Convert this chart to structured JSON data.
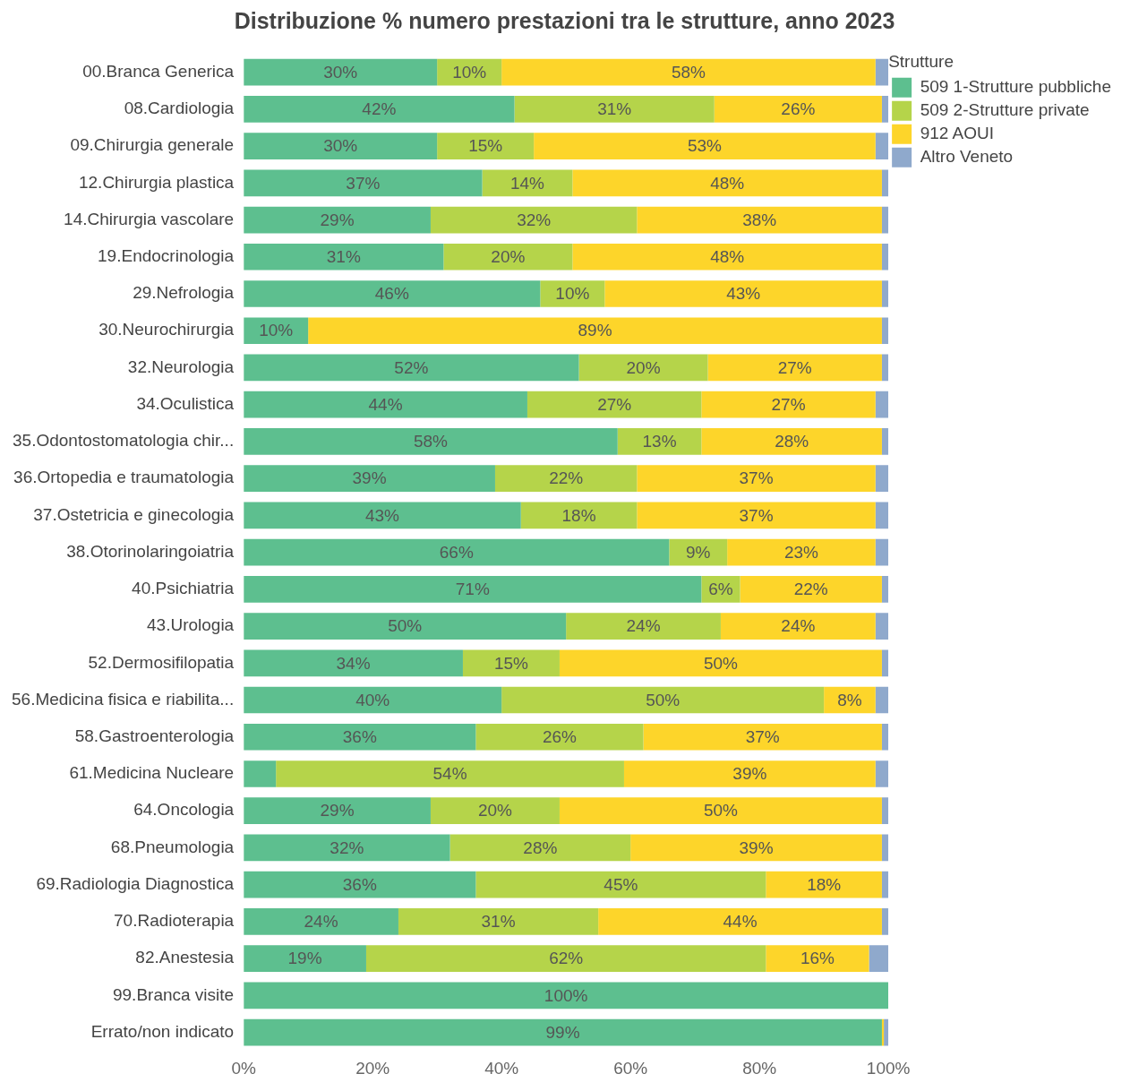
{
  "chart_data": {
    "type": "bar",
    "orientation": "horizontal",
    "stacked": true,
    "title": "Distribuzione % numero prestazioni tra le strutture, anno 2023",
    "legend_title": "Strutture",
    "legend": "top right",
    "grid": false,
    "categories": [
      "00.Branca Generica",
      "08.Cardiologia",
      "09.Chirurgia generale",
      "12.Chirurgia plastica",
      "14.Chirurgia vascolare",
      "19.Endocrinologia",
      "29.Nefrologia",
      "30.Neurochirurgia",
      "32.Neurologia",
      "34.Oculistica",
      "35.Odontostomatologia chir...",
      "36.Ortopedia e traumatologia",
      "37.Ostetricia e ginecologia",
      "38.Otorinolaringoiatria",
      "40.Psichiatria",
      "43.Urologia",
      "52.Dermosifilopatia",
      "56.Medicina fisica e riabilita...",
      "58.Gastroenterologia",
      "61.Medicina Nucleare",
      "64.Oncologia",
      "68.Pneumologia",
      "69.Radiologia Diagnostica",
      "70.Radioterapia",
      "82.Anestesia",
      "99.Branca visite",
      "Errato/non indicato"
    ],
    "xlim": [
      0,
      100
    ],
    "xticks": [
      {
        "value": 0,
        "label": "0%"
      },
      {
        "value": 20,
        "label": "20%"
      },
      {
        "value": 40,
        "label": "40%"
      },
      {
        "value": 60,
        "label": "60%"
      },
      {
        "value": 80,
        "label": "80%"
      },
      {
        "value": 100,
        "label": "100%"
      }
    ],
    "series": [
      {
        "name": "509 1-Strutture pubbliche",
        "color": "#5dbf8f",
        "values": [
          30,
          42,
          30,
          37,
          29,
          31,
          46,
          10,
          52,
          44,
          58,
          39,
          43,
          66,
          71,
          50,
          34,
          40,
          36,
          5,
          29,
          32,
          36,
          24,
          19,
          100,
          99
        ],
        "value_labels": [
          "30%",
          "42%",
          "30%",
          "37%",
          "29%",
          "31%",
          "46%",
          "10%",
          "52%",
          "44%",
          "58%",
          "39%",
          "43%",
          "66%",
          "71%",
          "50%",
          "34%",
          "40%",
          "36%",
          null,
          "29%",
          "32%",
          "36%",
          "24%",
          "19%",
          "100%",
          "99%"
        ]
      },
      {
        "name": "509 2-Strutture private",
        "color": "#b5d44a",
        "values": [
          10,
          31,
          15,
          14,
          32,
          20,
          10,
          null,
          20,
          27,
          13,
          22,
          18,
          9,
          6,
          24,
          15,
          50,
          26,
          54,
          20,
          28,
          45,
          31,
          62,
          null,
          null
        ],
        "value_labels": [
          "10%",
          "31%",
          "15%",
          "14%",
          "32%",
          "20%",
          "10%",
          null,
          "20%",
          "27%",
          "13%",
          "22%",
          "18%",
          "9%",
          "6%",
          "24%",
          "15%",
          "50%",
          "26%",
          "54%",
          "20%",
          "28%",
          "45%",
          "31%",
          "62%",
          null,
          null
        ]
      },
      {
        "name": "912 AOUI",
        "color": "#fdd52a",
        "values": [
          58,
          26,
          53,
          48,
          38,
          48,
          43,
          89,
          27,
          27,
          28,
          37,
          37,
          23,
          22,
          24,
          50,
          8,
          37,
          39,
          50,
          39,
          18,
          44,
          16,
          null,
          0.3
        ],
        "value_labels": [
          "58%",
          "26%",
          "53%",
          "48%",
          "38%",
          "48%",
          "43%",
          "89%",
          "27%",
          "27%",
          "28%",
          "37%",
          "37%",
          "23%",
          "22%",
          "24%",
          "50%",
          "8%",
          "37%",
          "39%",
          "50%",
          "39%",
          "18%",
          "44%",
          "16%",
          null,
          null
        ]
      },
      {
        "name": "Altro Veneto",
        "color": "#8fa9cc",
        "values": [
          2,
          1,
          2,
          1,
          1,
          1,
          1,
          1,
          1,
          2,
          1,
          2,
          2,
          2,
          1,
          2,
          1,
          2,
          1,
          2,
          1,
          1,
          1,
          1,
          3,
          null,
          0.7
        ]
      }
    ]
  }
}
